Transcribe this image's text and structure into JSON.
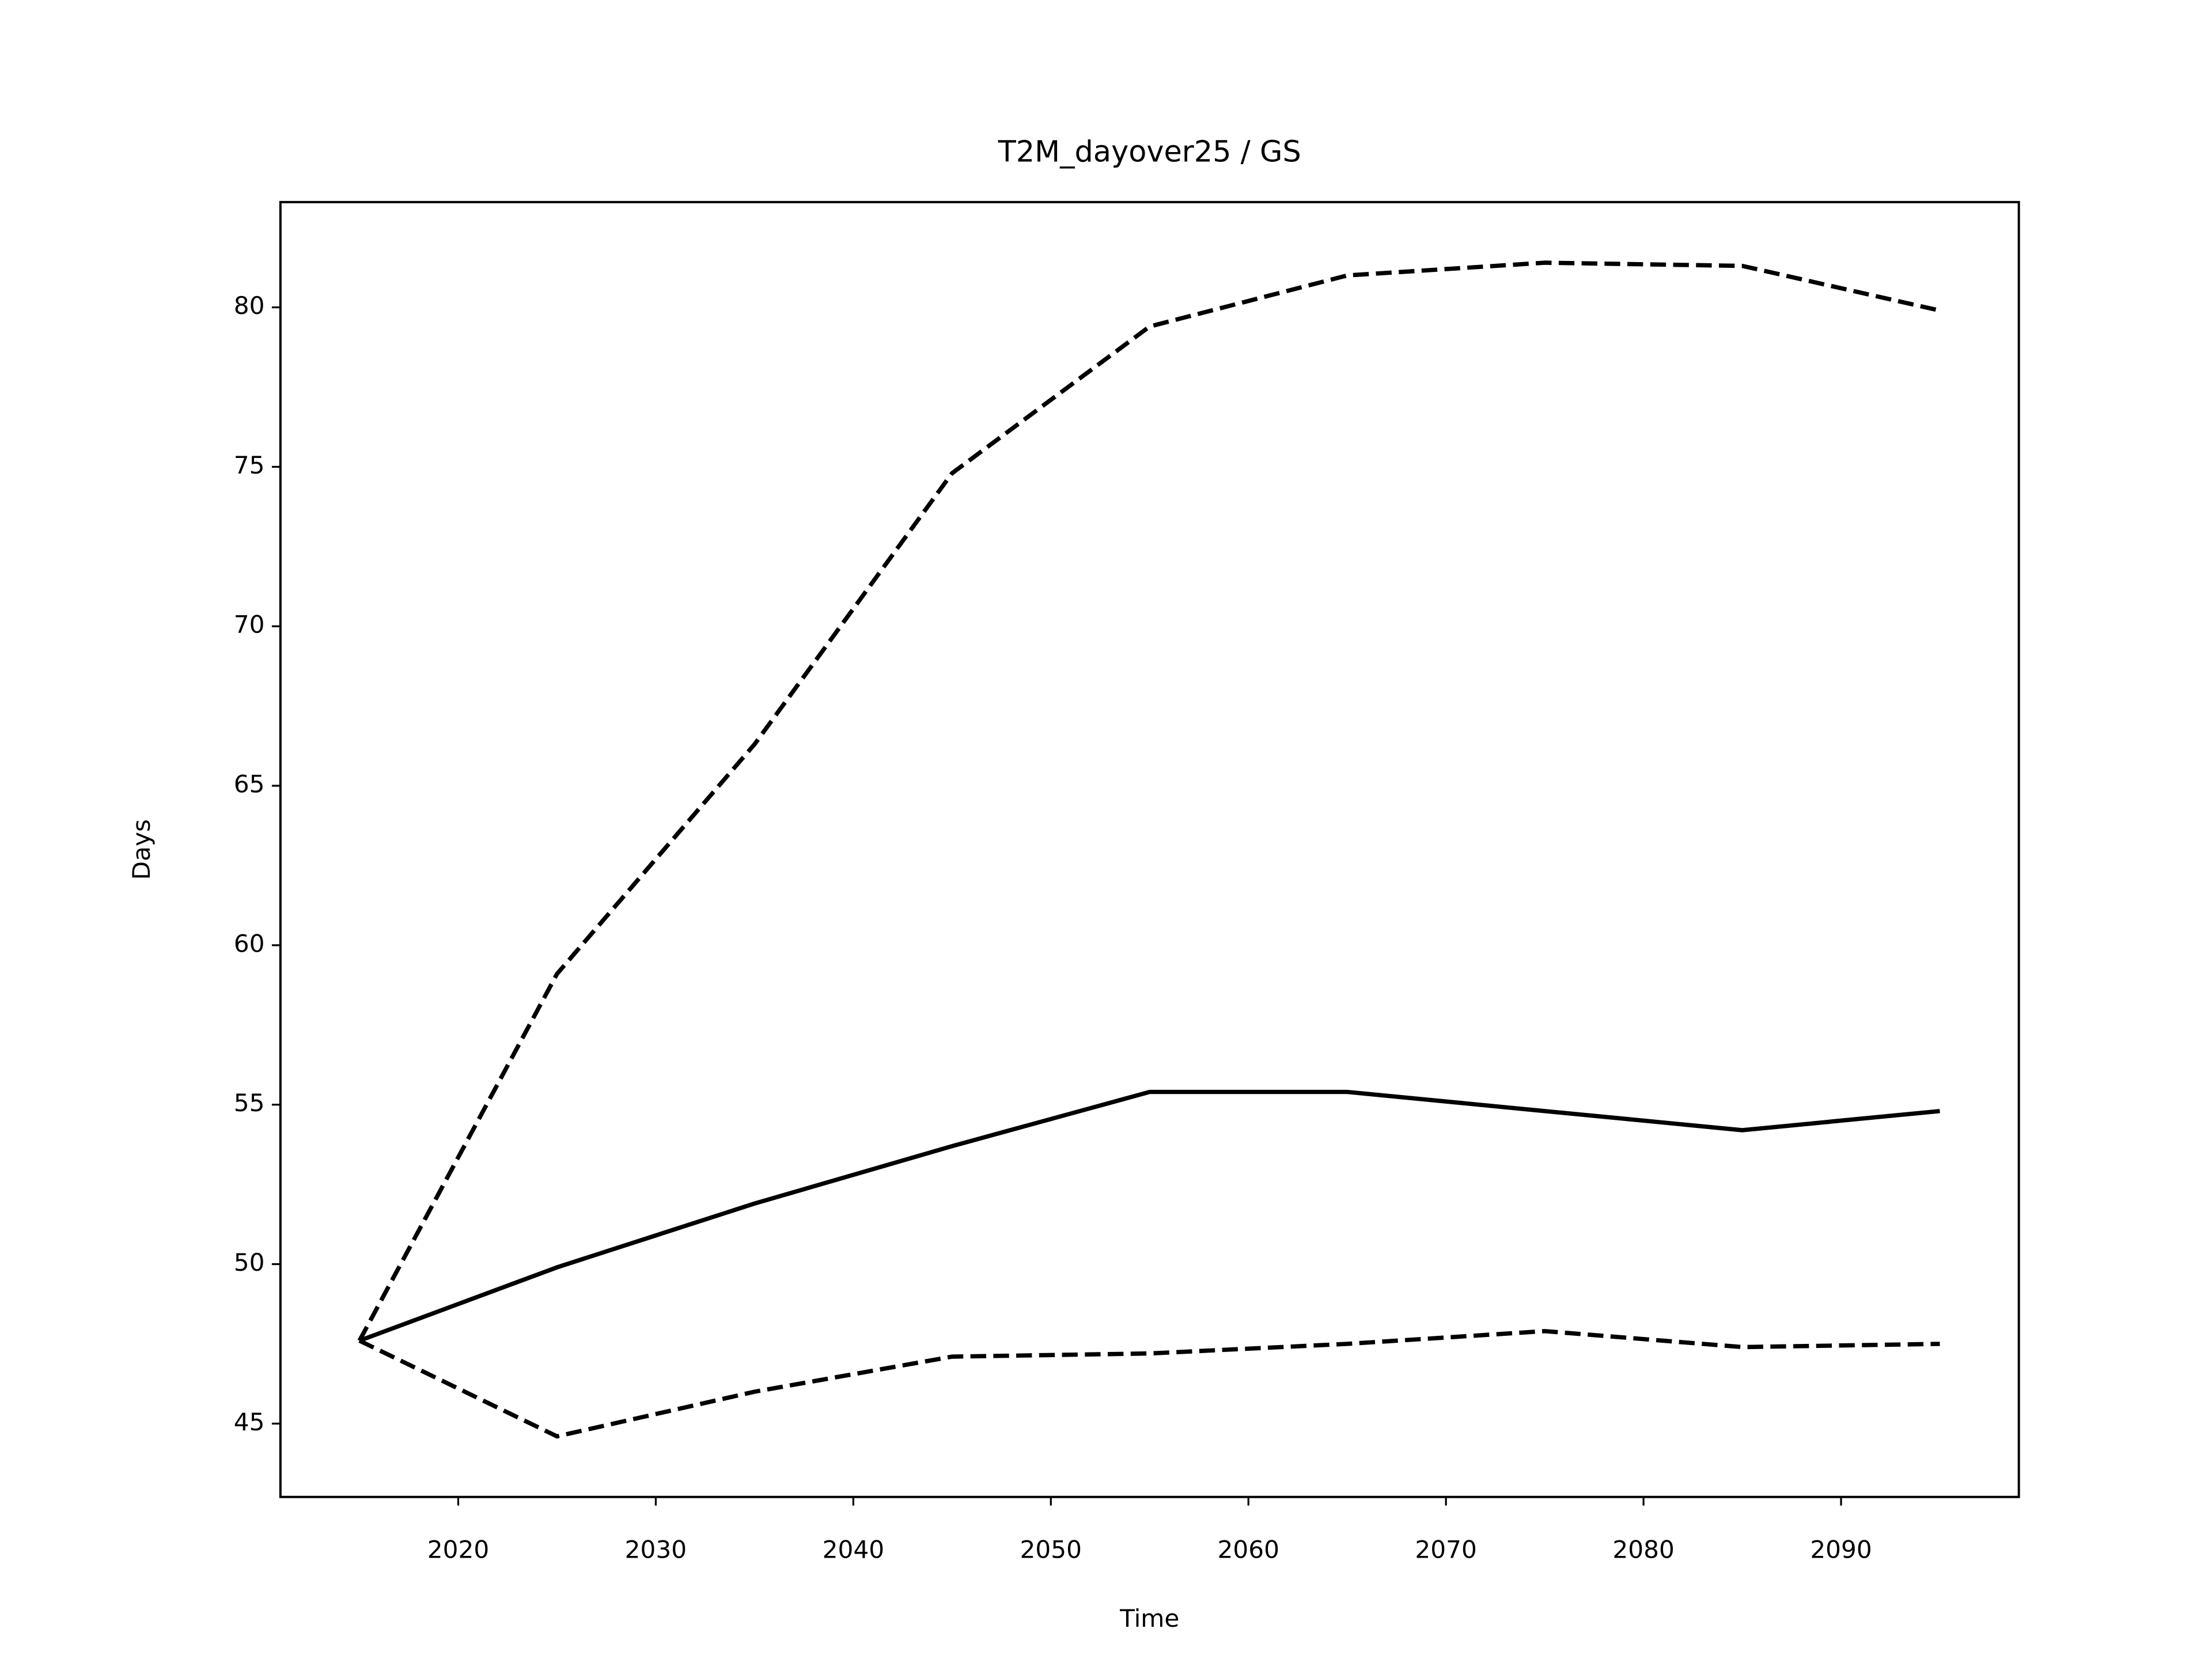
{
  "chart_data": {
    "type": "line",
    "title": "T2M_dayover25 / GS",
    "x_label": "Time",
    "y_label": "Days",
    "x": [
      2015,
      2025,
      2035,
      2045,
      2055,
      2065,
      2075,
      2085,
      2095
    ],
    "series": [
      {
        "color": "#000000",
        "dashed": false,
        "values": [
          47.6,
          49.9,
          51.9,
          53.7,
          55.4,
          55.4,
          54.8,
          54.2,
          54.8
        ]
      },
      {
        "color": "#000000",
        "dashed": true,
        "values": [
          47.6,
          59.1,
          66.3,
          74.8,
          79.4,
          81.0,
          81.4,
          81.3,
          79.9
        ]
      },
      {
        "color": "#000000",
        "dashed": true,
        "values": [
          47.6,
          44.6,
          46.0,
          47.1,
          47.2,
          47.5,
          47.9,
          47.4,
          47.5
        ]
      }
    ],
    "xlim": [
      2011,
      2099
    ],
    "ylim": [
      42.7,
      83.3
    ],
    "xticks": [
      2020,
      2030,
      2040,
      2050,
      2060,
      2070,
      2080,
      2090
    ],
    "yticks": [
      45,
      50,
      55,
      60,
      65,
      70,
      75,
      80
    ],
    "grid": false
  }
}
